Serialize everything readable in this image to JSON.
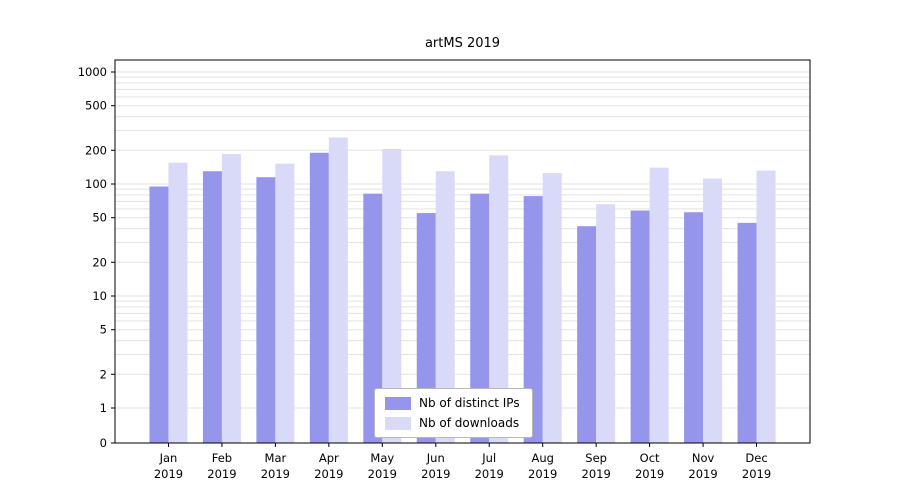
{
  "chart_data": {
    "type": "bar",
    "title": "artMS 2019",
    "categories": [
      "Jan 2019",
      "Feb 2019",
      "Mar 2019",
      "Apr 2019",
      "May 2019",
      "Jun 2019",
      "Jul 2019",
      "Aug 2019",
      "Sep 2019",
      "Oct 2019",
      "Nov 2019",
      "Dec 2019"
    ],
    "series": [
      {
        "name": "Nb of distinct IPs",
        "color": "#9595ec",
        "values": [
          95,
          130,
          115,
          190,
          82,
          55,
          82,
          78,
          42,
          58,
          56,
          45
        ]
      },
      {
        "name": "Nb of downloads",
        "color": "#d9d9f8",
        "values": [
          155,
          185,
          152,
          260,
          205,
          130,
          180,
          125,
          66,
          140,
          112,
          132
        ]
      }
    ],
    "yscale": "log",
    "yticks": [
      0,
      1,
      2,
      5,
      10,
      20,
      50,
      100,
      200,
      500,
      1000
    ],
    "ylim": [
      0,
      1000
    ],
    "grid": true,
    "legend_position": "lower center",
    "axis_color": "#000000",
    "grid_color": "#e3e3e3"
  }
}
